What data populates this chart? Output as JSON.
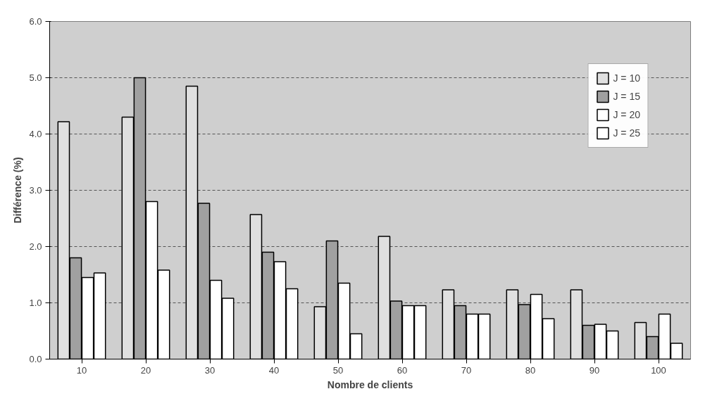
{
  "chart_data": {
    "type": "bar",
    "xlabel": "Nombre de clients",
    "ylabel": "Différence (%)",
    "categories": [
      "10",
      "20",
      "30",
      "40",
      "50",
      "60",
      "70",
      "80",
      "90",
      "100"
    ],
    "series": [
      {
        "name": "J = 10",
        "color": "#e0e0e0",
        "values": [
          4.22,
          4.3,
          4.85,
          2.57,
          0.93,
          2.18,
          1.23,
          1.23,
          1.23,
          0.65
        ]
      },
      {
        "name": "J = 15",
        "color": "#a0a0a0",
        "values": [
          1.8,
          5.0,
          2.77,
          1.9,
          2.1,
          1.03,
          0.95,
          0.97,
          0.6,
          0.4
        ]
      },
      {
        "name": "J = 20",
        "color": "#ffffff",
        "values": [
          1.45,
          2.8,
          1.4,
          1.73,
          1.35,
          0.95,
          0.8,
          1.15,
          0.62,
          0.8
        ]
      },
      {
        "name": "J = 25",
        "color": "#ffffff",
        "values": [
          1.53,
          1.58,
          1.08,
          1.25,
          0.45,
          0.95,
          0.8,
          0.72,
          0.5,
          0.28
        ]
      }
    ],
    "ylim": [
      0,
      6
    ],
    "yticks": [
      {
        "value": 0,
        "label": "0.0"
      },
      {
        "value": 1,
        "label": "1.0"
      },
      {
        "value": 2,
        "label": "2.0"
      },
      {
        "value": 3,
        "label": "3.0"
      },
      {
        "value": 4,
        "label": "4.0"
      },
      {
        "value": 5,
        "label": "5.0"
      },
      {
        "value": 6,
        "label": "6.0"
      }
    ],
    "grid": "y",
    "legend": "top right"
  }
}
